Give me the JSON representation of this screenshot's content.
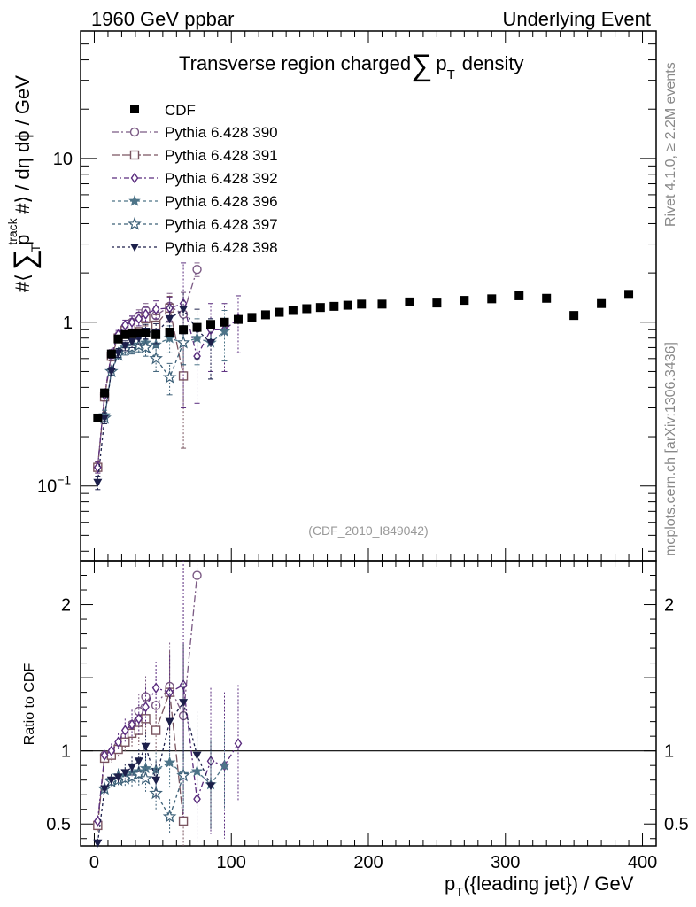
{
  "header": {
    "left": "1960 GeV ppbar",
    "right": "Underlying Event"
  },
  "side_texts": {
    "rivet": "Rivet 4.1.0, ≥ 2.2M events",
    "mcplots": "mcplots.cern.ch [arXiv:1306.3436]"
  },
  "chart_data": {
    "type": "scatter",
    "title": "Transverse region charged∑ p_T density",
    "title_parts": {
      "prefix": "Transverse region charged",
      "sigma": "∑",
      "p": "p",
      "sub": "T",
      "suffix": "density"
    },
    "analysis_tag": "(CDF_2010_I849042)",
    "xlabel": "p_T({leading jet}) / GeV",
    "xlabel_parts": {
      "p": "p",
      "sub": "T",
      "rest": "({leading jet}) / GeV"
    },
    "ylabel": "#⟨ ∑ p_T^track #⟩ / dη dϕ / GeV",
    "ylabel_parts": {
      "a": "#⟨",
      "sigma": "∑",
      "p": "p",
      "sup": "track",
      "sub": "T",
      "b": "#⟩ / dη dϕ / GeV"
    },
    "ratio_ylabel": "Ratio to CDF",
    "xlim": [
      -10,
      410
    ],
    "ylim": [
      0.035,
      60
    ],
    "yscale": "log",
    "ratio_ylim": [
      0.35,
      2.3
    ],
    "x_ticks": [
      0,
      100,
      200,
      300,
      400
    ],
    "x_tick_labels": [
      "0",
      "100",
      "200",
      "300",
      "400"
    ],
    "y_tick_labels": [
      {
        "value": 0.1,
        "base": "10",
        "exp": "−1"
      },
      {
        "value": 1,
        "label": "1"
      },
      {
        "value": 10,
        "label": "10"
      }
    ],
    "ratio_ticks": [
      0.5,
      1,
      2
    ],
    "ratio_tick_labels": [
      "0.5",
      "1",
      "2"
    ],
    "data": {
      "name": "CDF",
      "color": "#000000",
      "x": [
        2.5,
        7.5,
        12.5,
        17.5,
        22.5,
        27.5,
        32.5,
        37.5,
        45,
        55,
        65,
        75,
        85,
        95,
        105,
        115,
        125,
        135,
        145,
        155,
        165,
        175,
        185,
        195,
        210,
        230,
        250,
        270,
        290,
        310,
        330,
        350,
        370,
        390
      ],
      "y": [
        0.26,
        0.37,
        0.64,
        0.79,
        0.84,
        0.85,
        0.86,
        0.86,
        0.84,
        0.87,
        0.9,
        0.93,
        0.97,
        1.0,
        1.04,
        1.07,
        1.11,
        1.15,
        1.18,
        1.21,
        1.23,
        1.25,
        1.27,
        1.29,
        1.29,
        1.33,
        1.31,
        1.36,
        1.39,
        1.45,
        1.4,
        1.1,
        1.3,
        1.48
      ]
    },
    "series": [
      {
        "name": "Pythia 6.428 390",
        "color": "#7b5a84",
        "marker": "circle-open",
        "dash": "8,3,2,3",
        "x": [
          2.5,
          7.5,
          12.5,
          17.5,
          22.5,
          27.5,
          32.5,
          37.5,
          45,
          55,
          65,
          75
        ],
        "y": [
          0.13,
          0.36,
          0.63,
          0.82,
          0.93,
          1.0,
          1.09,
          1.18,
          1.1,
          1.25,
          1.12,
          2.1
        ],
        "yerr": [
          0.01,
          0.02,
          0.04,
          0.05,
          0.07,
          0.09,
          0.1,
          0.12,
          0.15,
          0.25,
          0.4,
          0.2
        ],
        "ratio": [
          0.5,
          0.97,
          0.98,
          1.03,
          1.1,
          1.18,
          1.27,
          1.37,
          1.31,
          1.44,
          1.24,
          2.2
        ],
        "ratio_err": [
          0.04,
          0.03,
          0.05,
          0.06,
          0.08,
          0.1,
          0.12,
          0.14,
          0.18,
          0.3,
          0.45,
          0.15
        ]
      },
      {
        "name": "Pythia 6.428 391",
        "color": "#7a5560",
        "marker": "square-open",
        "dash": "9,3",
        "x": [
          2.5,
          7.5,
          12.5,
          17.5,
          22.5,
          27.5,
          32.5,
          37.5,
          45,
          55,
          65
        ],
        "y": [
          0.13,
          0.35,
          0.62,
          0.8,
          0.89,
          0.95,
          0.98,
          1.05,
          0.96,
          1.22,
          0.47
        ],
        "yerr": [
          0.01,
          0.02,
          0.04,
          0.05,
          0.06,
          0.08,
          0.09,
          0.1,
          0.15,
          0.22,
          0.3
        ],
        "ratio": [
          0.49,
          0.95,
          0.97,
          1.01,
          1.06,
          1.12,
          1.14,
          1.22,
          1.14,
          1.4,
          0.52
        ],
        "ratio_err": [
          0.04,
          0.03,
          0.05,
          0.06,
          0.07,
          0.09,
          0.1,
          0.12,
          0.16,
          0.28,
          0.3
        ]
      },
      {
        "name": "Pythia 6.428 392",
        "color": "#5a2c7e",
        "marker": "diamond-open",
        "dash": "6,3,2,3",
        "x": [
          2.5,
          7.5,
          12.5,
          17.5,
          22.5,
          27.5,
          32.5,
          37.5,
          45,
          55,
          65,
          75,
          85,
          95,
          105
        ],
        "y": [
          0.13,
          0.36,
          0.64,
          0.84,
          0.96,
          1.0,
          1.05,
          1.12,
          1.2,
          1.22,
          1.3,
          0.62,
          0.9,
          0.9,
          1.05
        ],
        "yerr": [
          0.01,
          0.02,
          0.04,
          0.05,
          0.07,
          0.09,
          0.1,
          0.11,
          0.15,
          0.2,
          1.0,
          0.3,
          0.4,
          0.4,
          0.4
        ],
        "ratio": [
          0.52,
          0.97,
          1.0,
          1.06,
          1.14,
          1.18,
          1.22,
          1.3,
          1.43,
          1.4,
          1.45,
          0.67,
          0.93,
          0.9,
          1.05
        ],
        "ratio_err": [
          0.04,
          0.03,
          0.05,
          0.06,
          0.08,
          0.1,
          0.12,
          0.13,
          0.18,
          0.25,
          0.9,
          0.3,
          0.5,
          0.5,
          0.4
        ]
      },
      {
        "name": "Pythia 6.428 396",
        "color": "#4d7488",
        "marker": "star-filled",
        "dash": "4,3",
        "x": [
          7.5,
          12.5,
          17.5,
          22.5,
          27.5,
          32.5,
          37.5,
          45,
          55,
          65,
          75,
          85,
          95
        ],
        "y": [
          0.27,
          0.5,
          0.65,
          0.7,
          0.72,
          0.73,
          0.75,
          0.73,
          0.8,
          0.75,
          0.8,
          0.75,
          0.88
        ],
        "yerr": [
          0.02,
          0.03,
          0.04,
          0.05,
          0.06,
          0.07,
          0.08,
          0.1,
          0.15,
          0.2,
          0.25,
          0.3,
          0.3
        ],
        "ratio": [
          0.74,
          0.8,
          0.83,
          0.83,
          0.85,
          0.86,
          0.88,
          0.87,
          0.92,
          0.84,
          0.86,
          0.77,
          0.9
        ],
        "ratio_err": [
          0.03,
          0.04,
          0.05,
          0.06,
          0.07,
          0.08,
          0.09,
          0.12,
          0.18,
          0.22,
          0.28,
          0.3,
          0.3
        ]
      },
      {
        "name": "Pythia 6.428 397",
        "color": "#3c6078",
        "marker": "star-open",
        "dash": "4,3",
        "x": [
          7.5,
          12.5,
          17.5,
          22.5,
          27.5,
          32.5,
          37.5,
          45,
          55,
          65
        ],
        "y": [
          0.26,
          0.5,
          0.63,
          0.68,
          0.7,
          0.72,
          0.7,
          0.6,
          0.46,
          0.75
        ],
        "yerr": [
          0.02,
          0.03,
          0.04,
          0.05,
          0.06,
          0.07,
          0.08,
          0.1,
          0.1,
          0.2
        ],
        "ratio": [
          0.74,
          0.79,
          0.8,
          0.81,
          0.82,
          0.84,
          0.81,
          0.71,
          0.55,
          0.83
        ],
        "ratio_err": [
          0.03,
          0.04,
          0.05,
          0.06,
          0.07,
          0.08,
          0.09,
          0.12,
          0.12,
          0.25
        ]
      },
      {
        "name": "Pythia 6.428 398",
        "color": "#1c1f4a",
        "marker": "triangle-down-filled",
        "dash": "3,3",
        "x": [
          2.5,
          7.5,
          12.5,
          17.5,
          22.5,
          27.5,
          32.5,
          37.5,
          45,
          55,
          65,
          75,
          85
        ],
        "y": [
          0.105,
          0.26,
          0.5,
          0.65,
          0.72,
          0.76,
          0.8,
          0.88,
          0.86,
          1.05,
          1.2,
          0.9,
          0.75
        ],
        "yerr": [
          0.01,
          0.02,
          0.03,
          0.04,
          0.05,
          0.06,
          0.07,
          0.09,
          0.12,
          0.2,
          0.35,
          0.3,
          0.3
        ],
        "ratio": [
          0.37,
          0.74,
          0.8,
          0.82,
          0.85,
          0.89,
          0.93,
          1.03,
          0.8,
          1.2,
          1.33,
          0.97,
          0.76
        ],
        "ratio_err": [
          0.03,
          0.03,
          0.04,
          0.05,
          0.06,
          0.07,
          0.08,
          0.1,
          0.13,
          0.22,
          0.4,
          0.3,
          0.3
        ]
      }
    ]
  }
}
